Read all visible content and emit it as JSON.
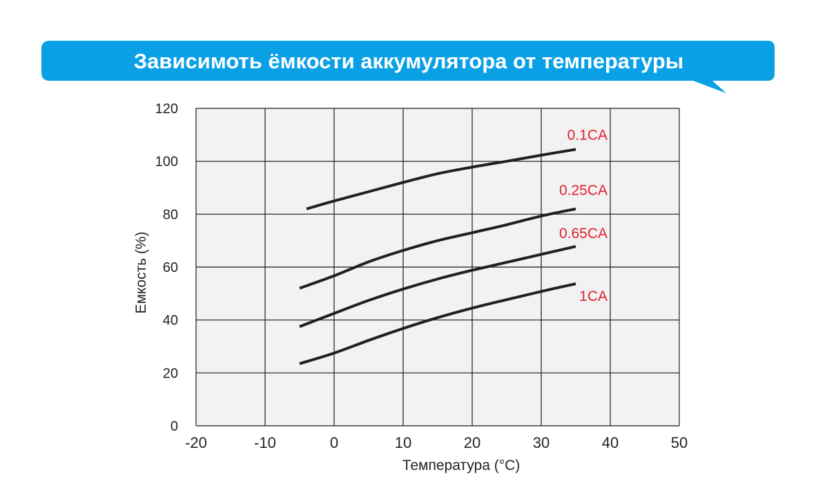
{
  "colors": {
    "banner": "#0aa0e6",
    "banner_text": "#ffffff",
    "plot_background": "#f2f2f2",
    "grid": "#1a1a1a",
    "curve": "#231f20",
    "series_label": "#e0202e"
  },
  "chart_data": {
    "type": "line",
    "title": "Зависимоть ёмкости аккумулятора от температуры",
    "xlabel": "Температура (°C)",
    "ylabel": "Емкость (%)",
    "xlim": [
      -20,
      50
    ],
    "ylim": [
      0,
      120
    ],
    "x_ticks": [
      -20,
      -10,
      0,
      10,
      20,
      30,
      40,
      50
    ],
    "x_tick_labels": [
      "-20",
      "-10",
      "0",
      "10",
      "20",
      "30",
      "40",
      "50"
    ],
    "y_ticks": [
      0,
      20,
      40,
      60,
      80,
      100,
      120
    ],
    "y_tick_labels": [
      "0",
      "20",
      "40",
      "60",
      "80",
      "100",
      "120"
    ],
    "grid": true,
    "legend": "inline labels at right end of each curve",
    "series": [
      {
        "name": "0.1CA",
        "x": [
          -4,
          0,
          5,
          10,
          15,
          20,
          25,
          30,
          35
        ],
        "y": [
          82,
          85,
          88.5,
          92,
          95.3,
          97.8,
          100,
          102.3,
          104.5
        ]
      },
      {
        "name": "0.25CA",
        "x": [
          -5,
          0,
          5,
          10,
          15,
          20,
          25,
          30,
          35
        ],
        "y": [
          52,
          56.7,
          62,
          66.3,
          70,
          73,
          76,
          79.3,
          82
        ]
      },
      {
        "name": "0.65CA",
        "x": [
          -5,
          0,
          5,
          10,
          15,
          20,
          25,
          30,
          35
        ],
        "y": [
          37.5,
          42.5,
          47.4,
          51.7,
          55.5,
          58.8,
          61.8,
          64.8,
          67.8
        ]
      },
      {
        "name": "1CA",
        "x": [
          -5,
          0,
          5,
          10,
          15,
          20,
          25,
          30,
          35
        ],
        "y": [
          23.5,
          27.5,
          32.3,
          36.8,
          40.9,
          44.5,
          47.7,
          50.8,
          53.7
        ]
      }
    ]
  }
}
